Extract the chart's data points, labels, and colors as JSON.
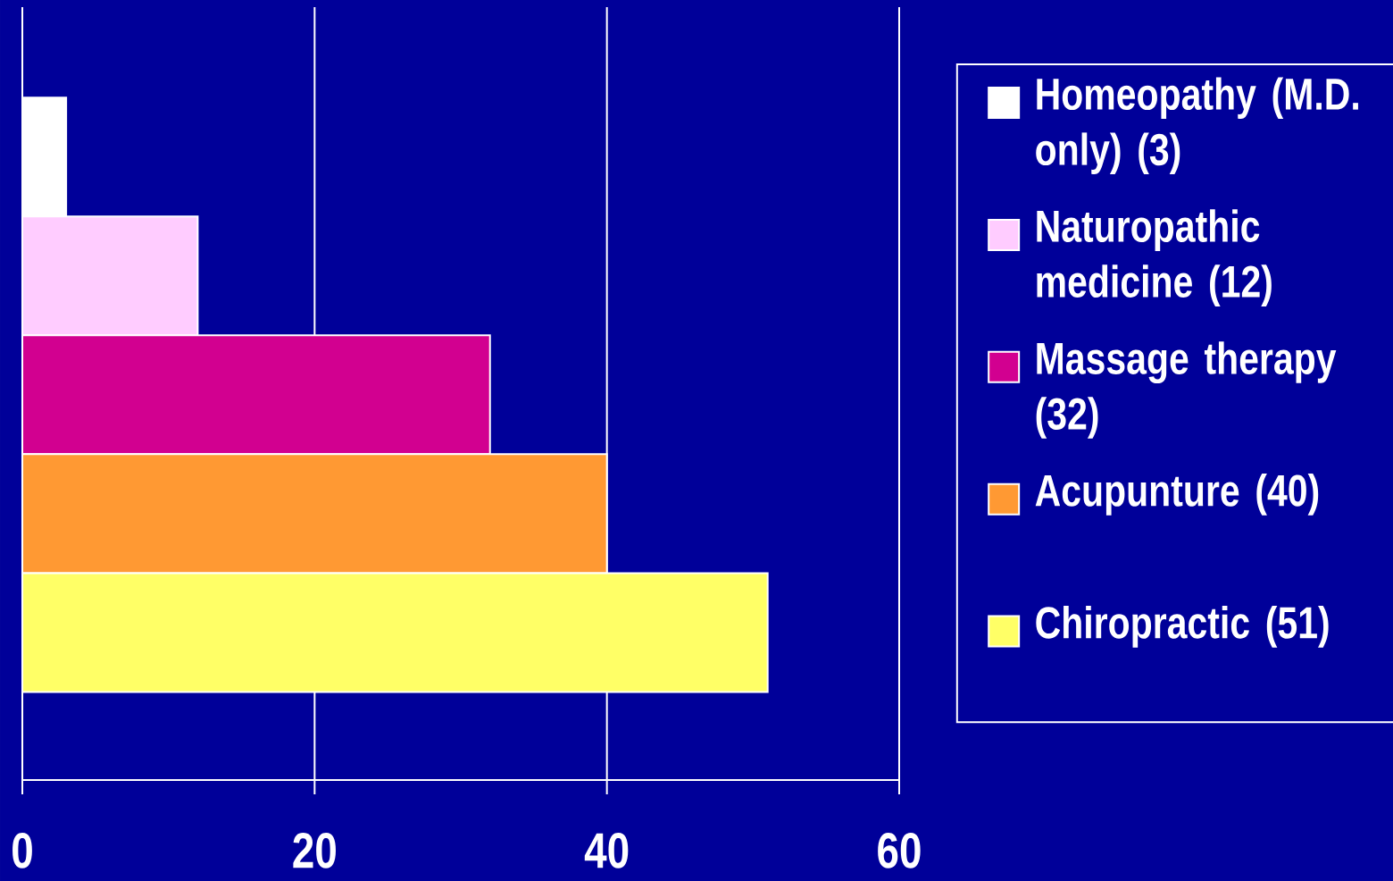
{
  "chart_data": {
    "type": "bar",
    "orientation": "horizontal",
    "categories": [
      null,
      null,
      null,
      null,
      null
    ],
    "series": [
      {
        "name": "Homeopathy (M.D. only) (3)",
        "color": "#ffffff",
        "values": [
          3,
          null,
          null,
          null,
          null
        ]
      },
      {
        "name": "Naturopathic medicine (12)",
        "color": "#ffccff",
        "values": [
          null,
          12,
          null,
          null,
          null
        ]
      },
      {
        "name": "Massage therapy (32)",
        "color": "#d20090",
        "values": [
          null,
          null,
          32,
          null,
          null
        ]
      },
      {
        "name": "Acupunture (40)",
        "color": "#ff9933",
        "values": [
          null,
          null,
          null,
          40,
          null
        ]
      },
      {
        "name": "Chiropractic (51)",
        "color": "#ffff66",
        "values": [
          null,
          null,
          null,
          null,
          51
        ]
      }
    ],
    "xlim": [
      0,
      60
    ],
    "xticks": [
      0,
      20,
      40,
      60
    ],
    "grid": "x",
    "legend": "right"
  }
}
